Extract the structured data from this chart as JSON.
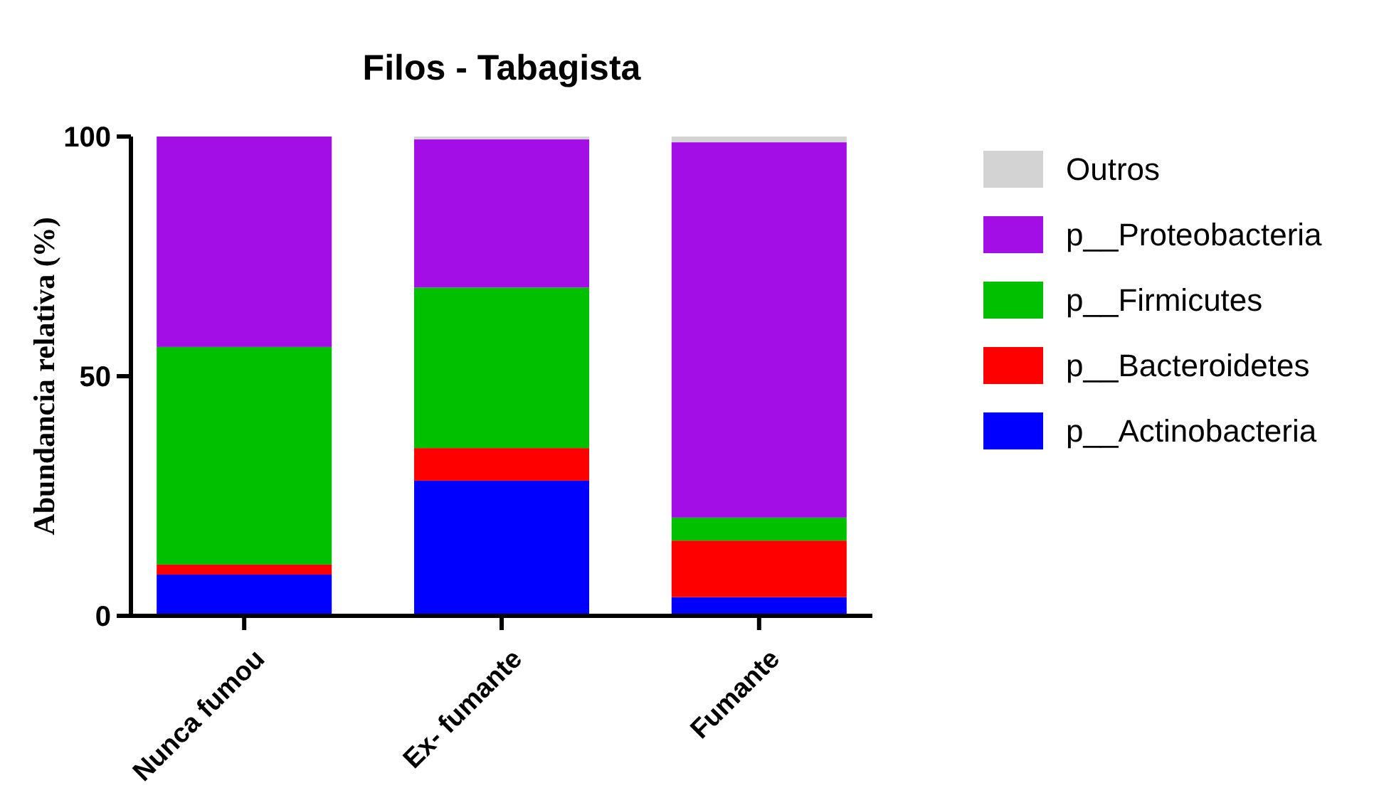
{
  "chart_data": {
    "type": "bar",
    "title": "Filos - Tabagista",
    "ylabel": "Abundancia relativa (%)",
    "categories": [
      "Nunca fumou",
      "Ex- fumante",
      "Fumante"
    ],
    "stacked": true,
    "ylim": [
      0,
      100
    ],
    "yticks": [
      0,
      50,
      100
    ],
    "grid": false,
    "legend": "right",
    "series": [
      {
        "name": "p__Actinobacteria",
        "color": "#0000ff",
        "values": [
          8.6,
          28.2,
          3.9
        ]
      },
      {
        "name": "p__Bacteroidetes",
        "color": "#ff0000",
        "values": [
          2.1,
          6.8,
          11.8
        ]
      },
      {
        "name": "p__Firmicutes",
        "color": "#00c000",
        "values": [
          45.4,
          33.5,
          4.8
        ]
      },
      {
        "name": "p__Proteobacteria",
        "color": "#a30de6",
        "values": [
          43.9,
          30.9,
          78.3
        ]
      },
      {
        "name": "Outros",
        "color": "#d3d3d3",
        "values": [
          0,
          0.6,
          1.2
        ]
      }
    ]
  }
}
